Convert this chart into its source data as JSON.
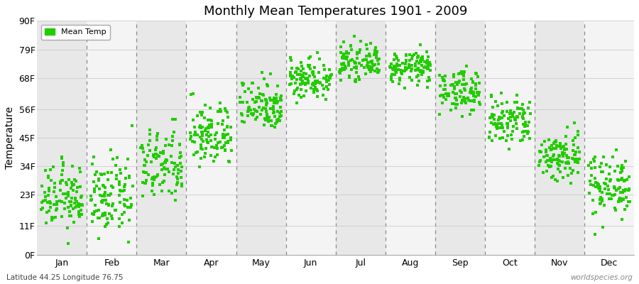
{
  "title": "Monthly Mean Temperatures 1901 - 2009",
  "ylabel": "Temperature",
  "yticks": [
    0,
    11,
    23,
    34,
    45,
    56,
    68,
    79,
    90
  ],
  "ytick_labels": [
    "0F",
    "11F",
    "23F",
    "34F",
    "45F",
    "56F",
    "68F",
    "79F",
    "90F"
  ],
  "ylim": [
    0,
    90
  ],
  "months": [
    "Jan",
    "Feb",
    "Mar",
    "Apr",
    "May",
    "Jun",
    "Jul",
    "Aug",
    "Sep",
    "Oct",
    "Nov",
    "Dec"
  ],
  "month_centers": [
    0.5,
    1.5,
    2.5,
    3.5,
    4.5,
    5.5,
    6.5,
    7.5,
    8.5,
    9.5,
    10.5,
    11.5
  ],
  "month_boundaries": [
    0,
    1,
    2,
    3,
    4,
    5,
    6,
    7,
    8,
    9,
    10,
    11,
    12
  ],
  "dot_color": "#22cc00",
  "background_color": "#ffffff",
  "plot_bg_color": "#ffffff",
  "alt_band_color_dark": "#e8e8e8",
  "alt_band_color_light": "#f4f4f4",
  "grid_color": "#cccccc",
  "dashed_line_color": "#888888",
  "legend_label": "Mean Temp",
  "subtitle": "Latitude 44.25 Longitude 76.75",
  "watermark": "worldspecies.org",
  "monthly_means": [
    22,
    22,
    34,
    46,
    58,
    68,
    74,
    72,
    63,
    51,
    38,
    27
  ],
  "monthly_spreads": [
    6,
    7,
    7,
    6,
    5,
    4,
    3,
    3,
    4,
    5,
    5,
    6
  ],
  "monthly_x_spreads": [
    0.42,
    0.42,
    0.42,
    0.42,
    0.42,
    0.42,
    0.42,
    0.42,
    0.42,
    0.42,
    0.42,
    0.42
  ],
  "n_years": 109
}
